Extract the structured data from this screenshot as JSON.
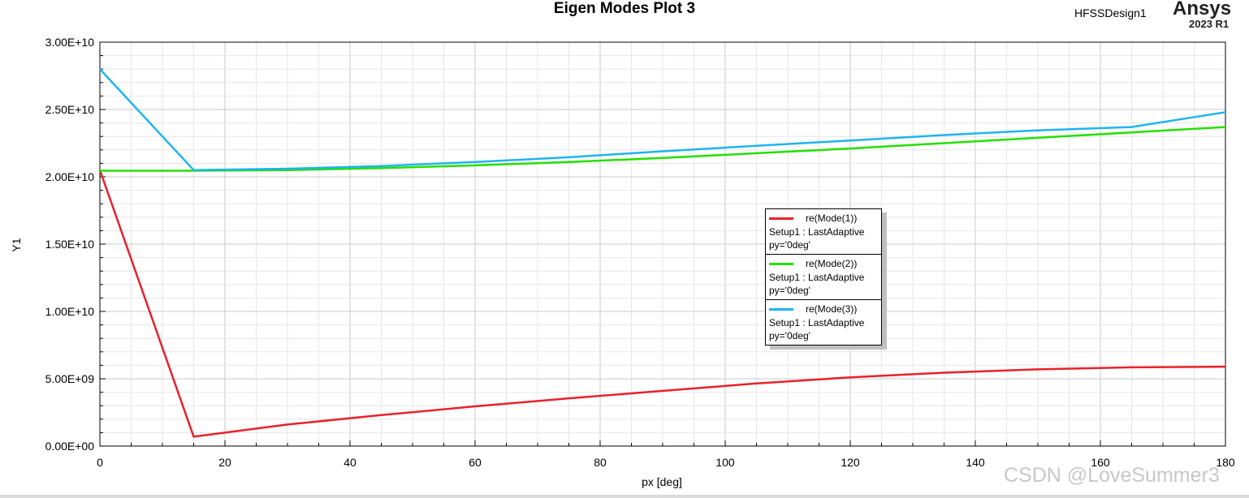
{
  "header": {
    "title": "Eigen Modes Plot 3",
    "design": "HFSSDesign1",
    "brand": "Ansys",
    "version": "2023 R1"
  },
  "watermark": "CSDN @LoveSummer3",
  "chart_data": {
    "type": "line",
    "title": "Eigen Modes Plot 3",
    "xlabel": "px [deg]",
    "ylabel": "Y1",
    "xlim": [
      0,
      180
    ],
    "ylim": [
      0,
      30000000000
    ],
    "x_ticks": [
      "0",
      "20",
      "40",
      "60",
      "80",
      "100",
      "120",
      "140",
      "160",
      "180"
    ],
    "y_ticks": [
      "0.00E+00",
      "5.00E+09",
      "1.00E+10",
      "1.50E+10",
      "2.00E+10",
      "2.50E+10",
      "3.00E+10"
    ],
    "grid": true,
    "legend_position": "center-right",
    "series": [
      {
        "name": "re(Mode(1))",
        "setup": "Setup1 : LastAdaptive",
        "params": "py='0deg'",
        "color": "#e8212b",
        "x": [
          0,
          15,
          30,
          45,
          60,
          75,
          90,
          105,
          120,
          135,
          150,
          165,
          180
        ],
        "y": [
          20500000000,
          700000000,
          1600000000,
          2300000000,
          2950000000,
          3550000000,
          4100000000,
          4650000000,
          5100000000,
          5450000000,
          5700000000,
          5850000000,
          5900000000
        ]
      },
      {
        "name": "re(Mode(2))",
        "setup": "Setup1 : LastAdaptive",
        "params": "py='0deg'",
        "color": "#22e000",
        "x": [
          0,
          15,
          30,
          45,
          60,
          75,
          90,
          105,
          120,
          135,
          150,
          165,
          180
        ],
        "y": [
          20450000000,
          20450000000,
          20500000000,
          20650000000,
          20850000000,
          21100000000,
          21400000000,
          21750000000,
          22100000000,
          22500000000,
          22900000000,
          23300000000,
          23700000000
        ]
      },
      {
        "name": "re(Mode(3))",
        "setup": "Setup1 : LastAdaptive",
        "params": "py='0deg'",
        "color": "#1eb4f0",
        "x": [
          0,
          15,
          30,
          45,
          60,
          75,
          90,
          105,
          120,
          135,
          150,
          165,
          180
        ],
        "y": [
          28000000000,
          20500000000,
          20600000000,
          20800000000,
          21100000000,
          21450000000,
          21900000000,
          22300000000,
          22700000000,
          23100000000,
          23450000000,
          23700000000,
          24800000000
        ]
      }
    ]
  }
}
